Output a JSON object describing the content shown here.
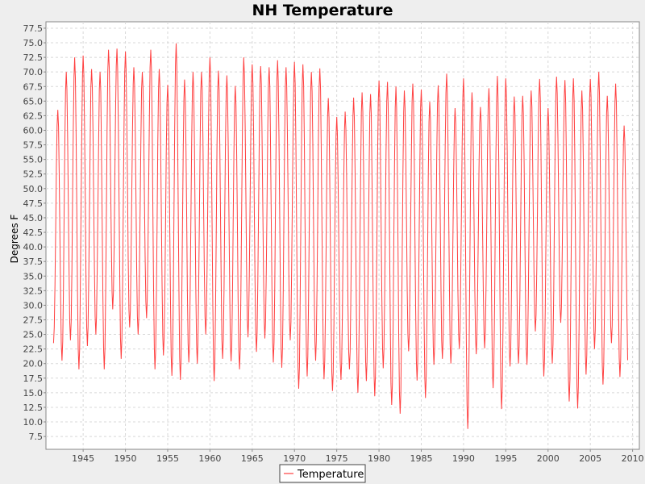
{
  "chart_data": {
    "type": "line",
    "title": "NH Temperature",
    "xlabel": "",
    "ylabel": "Degrees F",
    "xlim": [
      1940.6,
      2010.8
    ],
    "ylim": [
      5.3,
      78.6
    ],
    "xticks": [
      "1945",
      "1950",
      "1955",
      "1960",
      "1965",
      "1970",
      "1975",
      "1980",
      "1985",
      "1990",
      "1995",
      "2000",
      "2005",
      "2010"
    ],
    "yticks": [
      "7.5",
      "10.0",
      "12.5",
      "15.0",
      "17.5",
      "20.0",
      "22.5",
      "25.0",
      "27.5",
      "30.0",
      "32.5",
      "35.0",
      "37.5",
      "40.0",
      "42.5",
      "45.0",
      "47.5",
      "50.0",
      "52.5",
      "55.0",
      "57.5",
      "60.0",
      "62.5",
      "65.0",
      "67.5",
      "70.0",
      "72.5",
      "75.0",
      "77.5"
    ],
    "grid": true,
    "legend": "bottom-center",
    "series": [
      {
        "name": "Temperature",
        "color": "#ff4040",
        "start_year": 1941.5,
        "samples_per_year": 12,
        "annual_max": [
          63.5,
          70.0,
          72.5,
          72.8,
          70.5,
          70.0,
          73.8,
          74.0,
          73.5,
          70.8,
          70.0,
          73.8,
          70.5,
          67.8,
          74.9,
          68.7,
          70.0,
          70.0,
          72.5,
          70.2,
          69.4,
          67.6,
          72.5,
          71.3,
          71.0,
          70.8,
          72.0,
          70.8,
          71.7,
          71.3,
          70.0,
          70.6,
          65.5,
          62.3,
          63.2,
          65.6,
          66.5,
          66.2,
          68.5,
          68.3,
          67.5,
          66.8,
          68.0,
          67.0,
          64.9,
          67.7,
          69.7,
          63.8,
          68.9,
          66.5,
          64.0,
          67.2,
          69.3,
          68.9,
          65.8,
          65.9,
          66.8,
          68.8,
          63.8,
          69.2,
          68.6,
          68.9,
          66.8,
          68.8,
          70.0,
          65.9,
          68.0,
          60.8
        ],
        "annual_min": [
          23.5,
          20.5,
          24.0,
          19.0,
          23.0,
          25.0,
          19.0,
          29.3,
          20.8,
          26.2,
          25.0,
          27.8,
          19.0,
          21.4,
          17.9,
          17.2,
          20.2,
          20.0,
          25.0,
          17.0,
          20.8,
          20.4,
          19.0,
          24.5,
          22.0,
          24.3,
          20.2,
          19.3,
          24.0,
          15.7,
          17.8,
          20.5,
          17.3,
          15.3,
          17.2,
          19.0,
          15.0,
          17.0,
          14.4,
          19.2,
          12.9,
          11.4,
          22.1,
          17.1,
          14.1,
          19.8,
          20.8,
          20.0,
          22.5,
          8.8,
          21.6,
          22.6,
          15.8,
          12.2,
          19.5,
          20.0,
          19.8,
          25.5,
          17.8,
          20.0,
          27.0,
          13.5,
          12.3,
          18.1,
          22.5,
          16.4,
          23.5,
          17.7
        ]
      }
    ]
  }
}
